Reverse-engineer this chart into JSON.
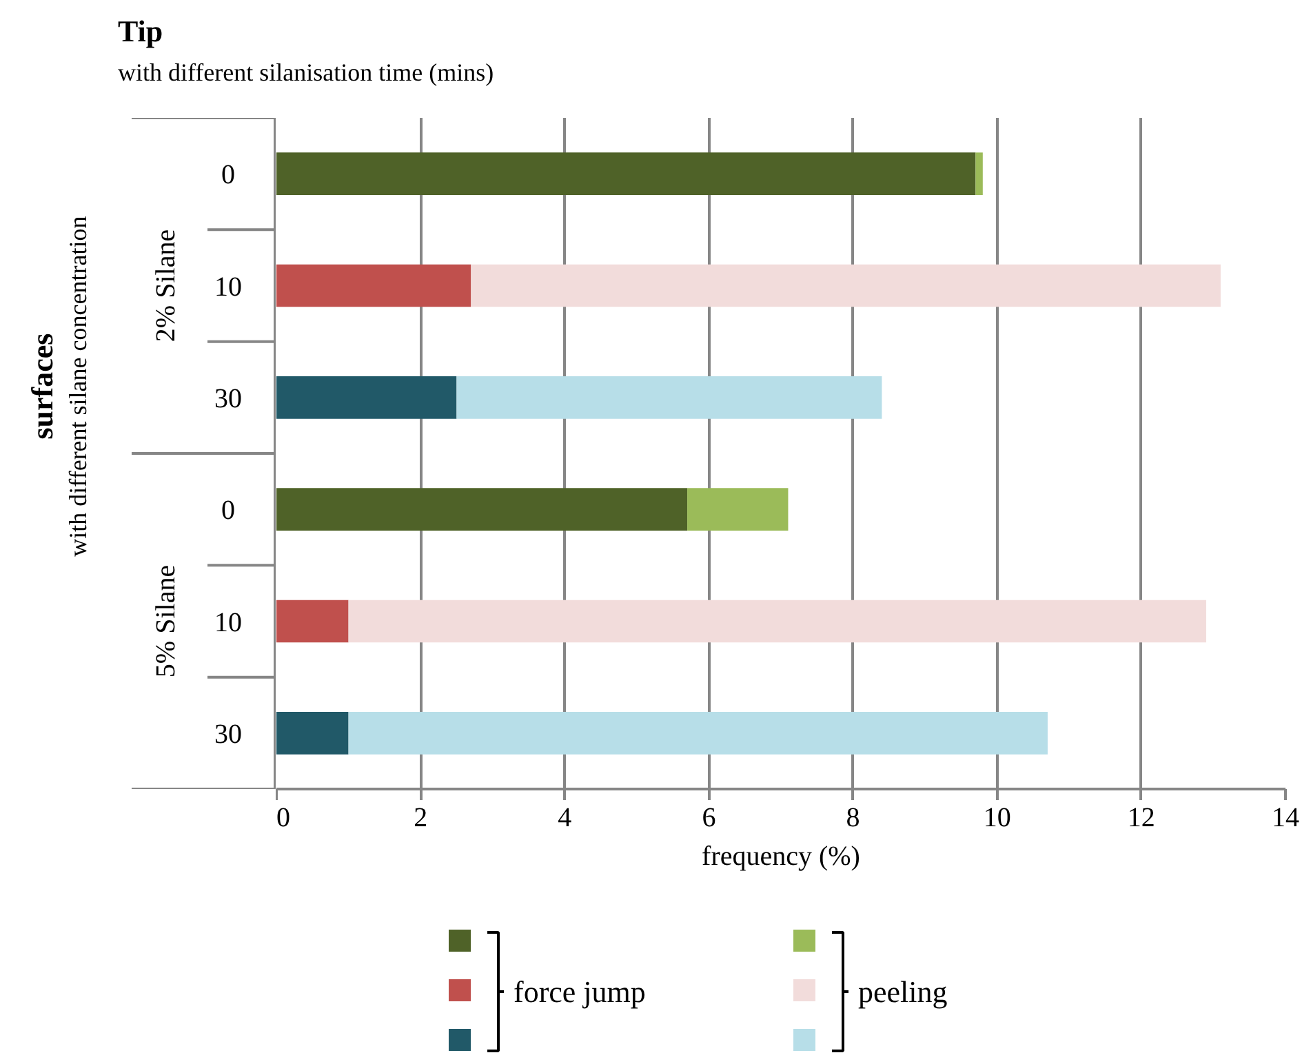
{
  "chart_data": {
    "type": "bar",
    "orientation": "horizontal",
    "stacked": true,
    "title": "Tip",
    "subtitle": "with different silanisation time (mins)",
    "xlabel": "frequency (%)",
    "annotations": [
      "surfaces",
      "with different silane concentration",
      "2% Silane",
      "5% Silane"
    ],
    "categories": [
      "0",
      "10",
      "30",
      "0",
      "10",
      "30"
    ],
    "series": [
      {
        "name": "force jump",
        "colors": [
          "#4f6228",
          "#c0504d",
          "#215968",
          "#4f6228",
          "#c0504d",
          "#215968"
        ],
        "values": [
          9.7,
          2.7,
          2.5,
          5.7,
          1.0,
          1.0
        ]
      },
      {
        "name": "peeling",
        "colors": [
          "#9bbb59",
          "#f2dcdb",
          "#b7dee8",
          "#9bbb59",
          "#f2dcdb",
          "#b7dee8"
        ],
        "values": [
          0.1,
          10.4,
          5.9,
          1.4,
          11.9,
          9.7
        ]
      }
    ],
    "xlim": [
      0,
      14
    ],
    "xticks": [
      0,
      2,
      4,
      6,
      8,
      10,
      12,
      14
    ],
    "grid": "x",
    "legend": "bottom"
  }
}
